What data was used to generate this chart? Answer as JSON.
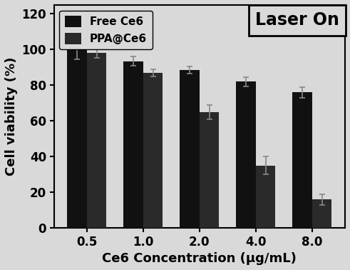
{
  "categories": [
    "0.5",
    "1.0",
    "2.0",
    "4.0",
    "8.0"
  ],
  "free_ce6_values": [
    100,
    93.5,
    88.5,
    82,
    76
  ],
  "ppa_ce6_values": [
    98,
    87,
    65,
    35,
    16
  ],
  "free_ce6_errors": [
    5.5,
    2.5,
    2.0,
    2.5,
    3.0
  ],
  "ppa_ce6_errors": [
    2.5,
    2.0,
    4.0,
    5.0,
    3.0
  ],
  "free_ce6_color": "#111111",
  "ppa_ce6_color": "#2a2a2a",
  "bg_color": "#d9d9d9",
  "plot_bg_color": "#d9d9d9",
  "ylabel": "Cell viability (%)",
  "xlabel": "Ce6 Concentration (μg/mL)",
  "annotation": "Laser On",
  "ylim": [
    0,
    125
  ],
  "yticks": [
    0,
    20,
    40,
    60,
    80,
    100,
    120
  ],
  "bar_width": 0.35,
  "legend_labels": [
    "Free Ce6",
    "PPA@Ce6"
  ],
  "axis_fontsize": 13,
  "tick_fontsize": 12,
  "legend_fontsize": 11,
  "annotation_fontsize": 17
}
